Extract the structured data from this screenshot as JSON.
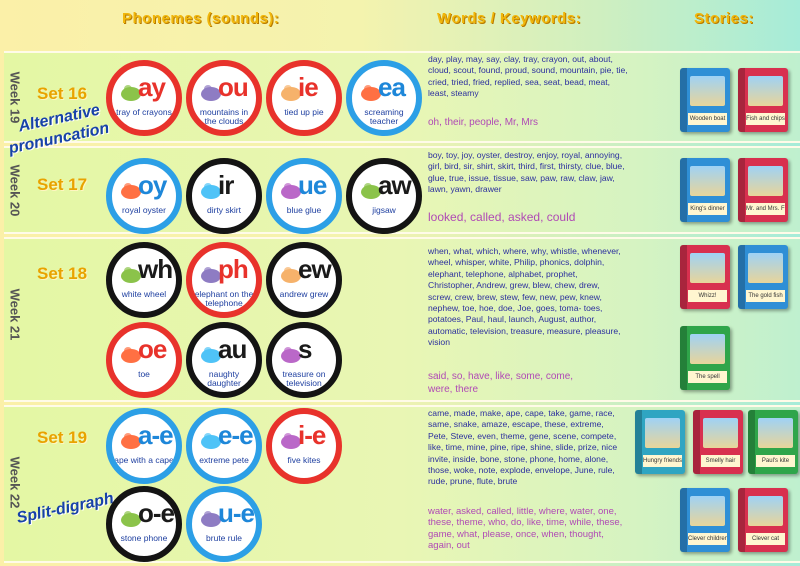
{
  "headers": {
    "phonemes": "Phonemes (sounds):",
    "words": "Words / Keywords:",
    "stories": "Stories:"
  },
  "annotations": {
    "alternative": "Alternative",
    "pronunciation": "pronuncation",
    "split": "Split-digraph"
  },
  "rows": [
    {
      "week": "Week 19",
      "set": "Set 16",
      "phonemes": [
        {
          "sound": "ay",
          "caption": "tray of crayons",
          "style": "red",
          "icon": "crayons-icon"
        },
        {
          "sound": "ou",
          "caption": "mountains in the clouds",
          "style": "red",
          "icon": "mountain-icon"
        },
        {
          "sound": "ie",
          "caption": "tied up pie",
          "style": "red",
          "icon": "pie-icon"
        },
        {
          "sound": "ea",
          "caption": "screaming teacher",
          "style": "blue",
          "icon": "teacher-icon"
        }
      ],
      "words": "day, play, may, say, clay, tray, crayon, out, about, cloud, scout, found, proud, sound, mountain, pie, tie, cried, tried, fried, replied, sea, seat, bead, meat, least, steamy",
      "exceptions": "oh, their, people, Mr, Mrs",
      "stories": [
        {
          "title": "Wooden boat",
          "color": "#2f8fd6"
        },
        {
          "title": "Fish and chips",
          "color": "#d8304f"
        }
      ]
    },
    {
      "week": "Week 20",
      "set": "Set 17",
      "phonemes": [
        {
          "sound": "oy",
          "caption": "royal oyster",
          "style": "blue",
          "icon": "oyster-icon"
        },
        {
          "sound": "ir",
          "caption": "dirty skirt",
          "style": "black",
          "icon": "skirt-icon"
        },
        {
          "sound": "ue",
          "caption": "blue glue",
          "style": "blue",
          "icon": "glue-icon"
        },
        {
          "sound": "aw",
          "caption": "jigsaw",
          "style": "black",
          "icon": "jigsaw-icon"
        }
      ],
      "words": "boy, toy, joy, oyster, destroy, enjoy, royal, annoying, girl, bird, sir, shirt, skirt, third, first, thirsty, clue, blue, glue, true, issue, tissue, saw, paw, raw, claw, jaw, lawn, yawn, drawer",
      "exceptions": "looked, called, asked, could",
      "stories": [
        {
          "title": "King's dinner",
          "color": "#2f8fd6"
        },
        {
          "title": "Mr. and Mrs. Fish",
          "color": "#d8304f"
        }
      ]
    },
    {
      "week": "Week 21",
      "set": "Set 18",
      "phonemes": [
        {
          "sound": "wh",
          "caption": "white wheel",
          "style": "black",
          "icon": "wheel-icon"
        },
        {
          "sound": "ph",
          "caption": "elephant on the telephone",
          "style": "red",
          "icon": "elephant-icon"
        },
        {
          "sound": "ew",
          "caption": "andrew grew",
          "style": "black",
          "icon": "boy-icon"
        },
        {
          "sound": "oe",
          "caption": "toe",
          "style": "red",
          "icon": "foot-icon"
        },
        {
          "sound": "au",
          "caption": "naughty daughter",
          "style": "black",
          "icon": "girl-icon"
        },
        {
          "sound": "s",
          "caption": "treasure on television",
          "style": "black",
          "icon": "television-icon"
        }
      ],
      "words": "when, what, which, where, why, whistle, whenever, wheel, whisper, white, Philip, phonics, dolphin, elephant, telephone, alphabet, prophet, Christopher, Andrew, grew, blew, chew, drew, screw, crew, brew, stew, few, new, pew, knew, nephew, toe, hoe, doe, Joe, goes, toma- toes, potatoes, Paul, haul, launch, August, author, automatic, television, treasure, measure, pleasure, vision",
      "exceptions": "said, so, have, like, some, come, were, there",
      "stories": [
        {
          "title": "Whizz!",
          "color": "#d8304f"
        },
        {
          "title": "The gold fish",
          "color": "#2f8fd6"
        },
        {
          "title": "The spell",
          "color": "#2fa54a"
        }
      ]
    },
    {
      "week": "Week 22",
      "set": "Set 19",
      "phonemes": [
        {
          "sound": "a-e",
          "caption": "ape with a cape",
          "style": "blue",
          "icon": "ape-icon"
        },
        {
          "sound": "e-e",
          "caption": "extreme pete",
          "style": "blue",
          "icon": "pete-icon"
        },
        {
          "sound": "i-e",
          "caption": "five kites",
          "style": "red",
          "icon": "kites-icon"
        },
        {
          "sound": "o-e",
          "caption": "stone phone",
          "style": "black",
          "icon": "phone-icon"
        },
        {
          "sound": "u-e",
          "caption": "brute rule",
          "style": "blue",
          "icon": "brute-icon"
        }
      ],
      "words": "came, made, make, ape, cape, take, game, race, same, snake, amaze, escape, these, extreme, Pete, Steve, even, theme, gene, scene, compete, like, time, mine, pine, ripe, shine, slide, prize, nice invite, inside, bone, stone, phone, home, alone, those, woke, note, explode, envelope, June, rule, rude, prune, flute, brute",
      "exceptions": "water, asked, called, little, where, water, one, these, theme, who, do, like, time, while, these, game, what, please, once, when, thought, again, out",
      "stories": [
        {
          "title": "Hungry friends",
          "color": "#2fa5c2"
        },
        {
          "title": "Smelly hair",
          "color": "#d8304f"
        },
        {
          "title": "Paul's kite",
          "color": "#2fa54a"
        },
        {
          "title": "Clever children",
          "color": "#2f8fd6"
        },
        {
          "title": "Clever cat",
          "color": "#d8304f"
        }
      ]
    }
  ]
}
